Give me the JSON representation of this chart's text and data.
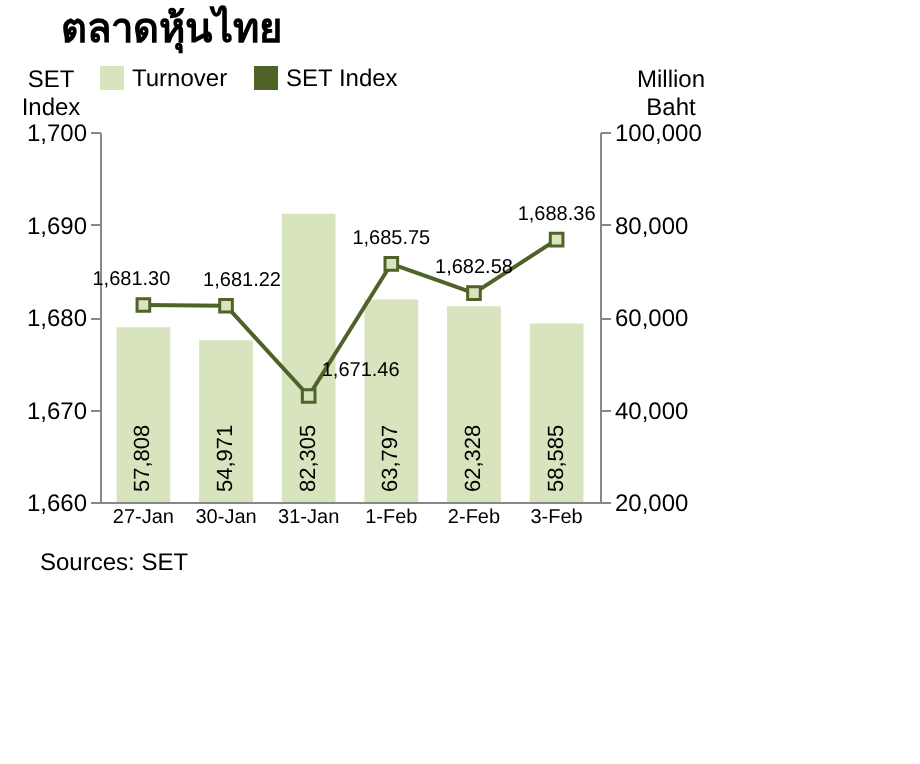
{
  "chart_data": {
    "type": "bar",
    "title": "ตลาดหุ้นไทย",
    "ylabel": "SET Index",
    "y2label": "Million Baht",
    "categories": [
      "27-Jan",
      "30-Jan",
      "31-Jan",
      "1-Feb",
      "2-Feb",
      "3-Feb"
    ],
    "series": [
      {
        "name": "Turnover",
        "axis": "y2",
        "color": "#d7e4bd",
        "values": [
          57808,
          54971,
          82305,
          63797,
          62328,
          58585
        ],
        "value_labels": [
          "57,808",
          "54,971",
          "82,305",
          "63,797",
          "62,328",
          "58,585"
        ]
      },
      {
        "name": "SET Index",
        "type": "line",
        "axis": "y",
        "color": "#4f6228",
        "marker": "square",
        "values": [
          1681.3,
          1681.22,
          1671.46,
          1685.75,
          1682.58,
          1688.36
        ],
        "value_labels": [
          "1,681.30",
          "1,681.22",
          "1,671.46",
          "1,685.75",
          "1,682.58",
          "1,688.36"
        ]
      }
    ],
    "ylim": [
      1660,
      1700
    ],
    "yticks": [
      {
        "value": 1660,
        "label": "1,660"
      },
      {
        "value": 1670,
        "label": "1,670"
      },
      {
        "value": 1680,
        "label": "1,680"
      },
      {
        "value": 1690,
        "label": "1,690"
      },
      {
        "value": 1700,
        "label": "1,700"
      }
    ],
    "y2lim": [
      20000,
      100000
    ],
    "y2ticks": [
      {
        "value": 20000,
        "label": "20,000"
      },
      {
        "value": 40000,
        "label": "40,000"
      },
      {
        "value": 60000,
        "label": "60,000"
      },
      {
        "value": 80000,
        "label": "80,000"
      },
      {
        "value": 100000,
        "label": "100,000"
      }
    ],
    "legend": "top",
    "grid": false,
    "annotations": [
      "Sources: SET"
    ]
  }
}
